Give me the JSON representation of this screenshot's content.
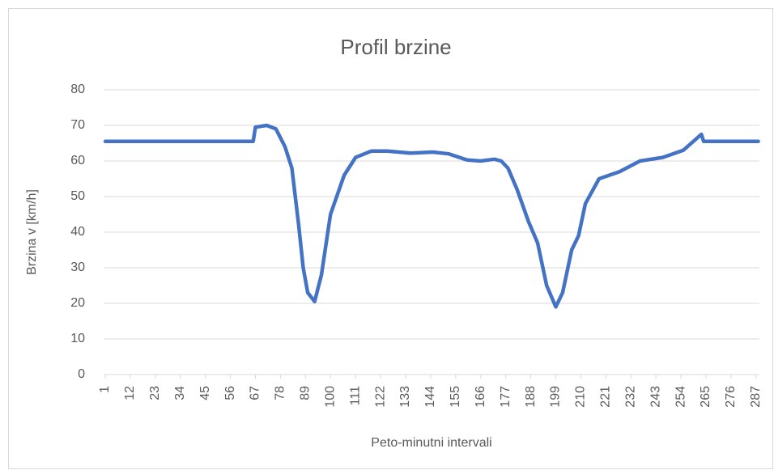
{
  "chart_data": {
    "type": "line",
    "title": "Profil brzine",
    "x_label": "Peto-minutni intervali",
    "y_label": "Brzina v [km/h]",
    "x": [
      1,
      66,
      67,
      72,
      76,
      80,
      83,
      86,
      88,
      90,
      93,
      96,
      100,
      106,
      111,
      118,
      125,
      135,
      145,
      152,
      160,
      166,
      172,
      175,
      178,
      182,
      187,
      191,
      195,
      199,
      202,
      206,
      209,
      212,
      218,
      227,
      236,
      246,
      255,
      263,
      264,
      288
    ],
    "values": [
      65.5,
      65.5,
      69.5,
      70,
      69,
      64,
      58,
      42,
      30,
      23,
      20.5,
      28,
      45,
      56,
      61,
      62.8,
      62.8,
      62.2,
      62.5,
      62,
      60.3,
      60,
      60.5,
      60,
      58,
      52,
      43,
      37,
      25,
      19,
      23,
      35,
      39,
      48,
      55,
      57,
      60,
      61,
      63,
      67.5,
      65.5,
      65.5
    ],
    "color": "#4472c4",
    "xlim": [
      0.5,
      288.5
    ],
    "xticks": [
      1,
      12,
      23,
      34,
      45,
      56,
      67,
      78,
      89,
      100,
      111,
      122,
      133,
      144,
      155,
      166,
      177,
      188,
      199,
      210,
      221,
      232,
      243,
      254,
      265,
      276,
      287
    ],
    "ylim": [
      0,
      80
    ],
    "yticks": [
      0,
      10,
      20,
      30,
      40,
      50,
      60,
      70,
      80
    ],
    "grid": true
  }
}
